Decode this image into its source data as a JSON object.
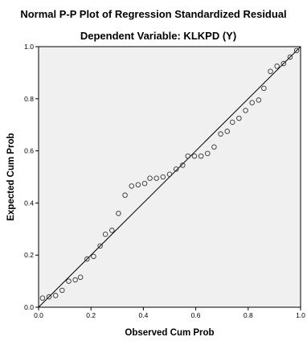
{
  "chart_data": {
    "type": "scatter",
    "title": "Normal P-P Plot of Regression Standardized Residual",
    "subtitle": "Dependent Variable: KLKPD (Y)",
    "xlabel": "Observed Cum Prob",
    "ylabel": "Expected Cum Prob",
    "xlim": [
      0,
      1
    ],
    "ylim": [
      0,
      1
    ],
    "xticks": [
      "0.0",
      "0.2",
      "0.4",
      "0.6",
      "0.8",
      "1.0"
    ],
    "yticks": [
      "0.0",
      "0.2",
      "0.4",
      "0.6",
      "0.8",
      "1.0"
    ],
    "reference_line": [
      [
        0,
        0
      ],
      [
        1,
        1
      ]
    ],
    "grid": false,
    "colors": {
      "plot_background": "#f0f0f0",
      "marker_edge": "#333333",
      "line": "#000000"
    },
    "points": [
      [
        0.015,
        0.035
      ],
      [
        0.04,
        0.04
      ],
      [
        0.065,
        0.045
      ],
      [
        0.09,
        0.065
      ],
      [
        0.115,
        0.1
      ],
      [
        0.14,
        0.105
      ],
      [
        0.16,
        0.115
      ],
      [
        0.185,
        0.185
      ],
      [
        0.21,
        0.195
      ],
      [
        0.235,
        0.235
      ],
      [
        0.255,
        0.28
      ],
      [
        0.28,
        0.295
      ],
      [
        0.305,
        0.36
      ],
      [
        0.33,
        0.43
      ],
      [
        0.355,
        0.465
      ],
      [
        0.38,
        0.47
      ],
      [
        0.405,
        0.475
      ],
      [
        0.425,
        0.495
      ],
      [
        0.45,
        0.495
      ],
      [
        0.475,
        0.5
      ],
      [
        0.5,
        0.51
      ],
      [
        0.525,
        0.53
      ],
      [
        0.55,
        0.545
      ],
      [
        0.57,
        0.58
      ],
      [
        0.595,
        0.58
      ],
      [
        0.62,
        0.58
      ],
      [
        0.645,
        0.59
      ],
      [
        0.67,
        0.615
      ],
      [
        0.695,
        0.665
      ],
      [
        0.72,
        0.675
      ],
      [
        0.74,
        0.71
      ],
      [
        0.765,
        0.725
      ],
      [
        0.79,
        0.755
      ],
      [
        0.815,
        0.785
      ],
      [
        0.84,
        0.795
      ],
      [
        0.86,
        0.84
      ],
      [
        0.885,
        0.905
      ],
      [
        0.91,
        0.925
      ],
      [
        0.935,
        0.935
      ],
      [
        0.96,
        0.96
      ],
      [
        0.985,
        0.985
      ]
    ]
  }
}
